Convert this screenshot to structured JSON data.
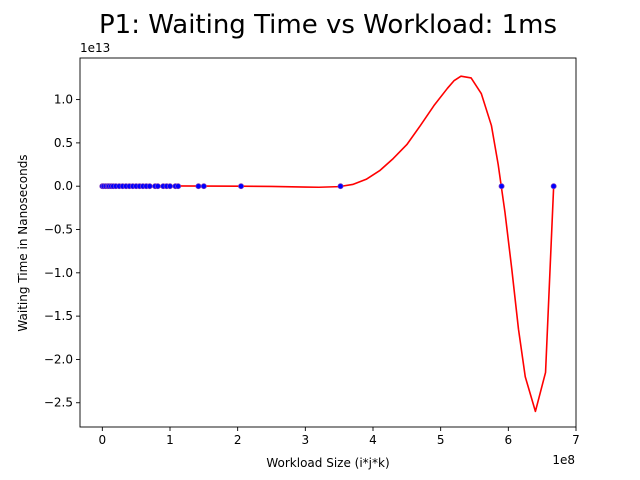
{
  "chart_data": {
    "type": "scatter",
    "title": "P1: Waiting Time vs Workload: 1ms",
    "xlabel": "Workload Size (i*j*k)",
    "ylabel": "Waiting Time in Nanoseconds",
    "x_offset_label": "1e8",
    "y_offset_label": "1e13",
    "xlim": [
      -0.33,
      7.0
    ],
    "ylim": [
      -2.78,
      1.48
    ],
    "x_unit_multiplier": 100000000,
    "y_unit_multiplier": 10000000000000,
    "x_ticks": [
      0,
      1,
      2,
      3,
      4,
      5,
      6,
      7
    ],
    "x_tick_labels": [
      "0",
      "1",
      "2",
      "3",
      "4",
      "5",
      "6",
      "7"
    ],
    "y_ticks": [
      1.0,
      0.5,
      0.0,
      -0.5,
      -1.0,
      -1.5,
      -2.0,
      -2.5
    ],
    "y_tick_labels": [
      "1.0",
      "0.5",
      "0.0",
      "−0.5",
      "−1.0",
      "−1.5",
      "−2.0",
      "−2.5"
    ],
    "grid": false,
    "series": [
      {
        "kind": "scatter",
        "color": "#0000ff",
        "edge_color": "#7f3fbf",
        "x": [
          0.0,
          0.02,
          0.05,
          0.08,
          0.1,
          0.13,
          0.16,
          0.2,
          0.25,
          0.3,
          0.35,
          0.4,
          0.45,
          0.5,
          0.55,
          0.6,
          0.65,
          0.7,
          0.78,
          0.82,
          0.9,
          0.95,
          1.0,
          1.08,
          1.12,
          1.42,
          1.5,
          2.05,
          3.52,
          5.9,
          6.67
        ],
        "y": [
          0,
          0,
          0,
          0,
          0,
          0,
          0,
          0,
          0,
          0,
          0,
          0,
          0,
          0,
          0,
          0,
          0,
          0,
          0,
          0,
          0,
          0,
          0,
          0,
          0,
          0,
          0,
          0,
          0,
          0,
          0
        ]
      },
      {
        "kind": "line",
        "color": "#ff0000",
        "x": [
          0.0,
          0.5,
          1.0,
          1.5,
          2.0,
          2.5,
          3.0,
          3.2,
          3.5,
          3.7,
          3.9,
          4.1,
          4.3,
          4.5,
          4.7,
          4.9,
          5.1,
          5.2,
          5.3,
          5.45,
          5.6,
          5.75,
          5.85,
          5.95,
          6.05,
          6.15,
          6.25,
          6.4,
          6.55,
          6.67
        ],
        "y": [
          0.0,
          0.002,
          0.003,
          0.002,
          0.0,
          -0.003,
          -0.01,
          -0.012,
          -0.005,
          0.02,
          0.08,
          0.18,
          0.32,
          0.48,
          0.7,
          0.93,
          1.13,
          1.22,
          1.27,
          1.25,
          1.07,
          0.7,
          0.25,
          -0.3,
          -0.95,
          -1.65,
          -2.2,
          -2.6,
          -2.15,
          0.0
        ]
      }
    ]
  }
}
